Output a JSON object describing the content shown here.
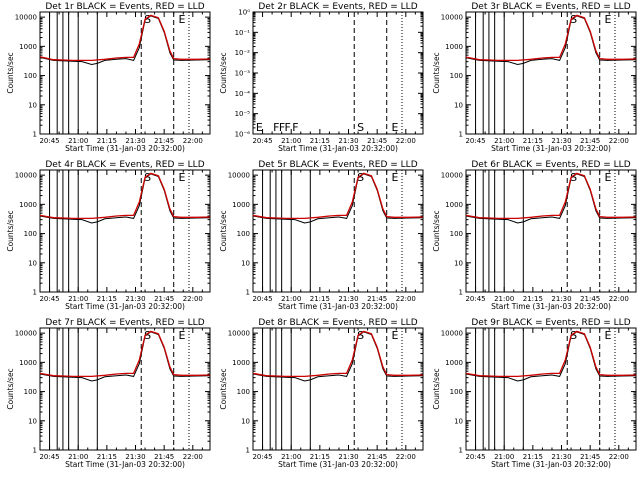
{
  "figure": {
    "xlabel": "Start Time (31-Jan-03 20:32:00)",
    "ylabel": "Counts/sec",
    "x_tick_labels": [
      "20:45",
      "21:00",
      "21:15",
      "21:30",
      "21:45",
      "22:00"
    ],
    "y_tick_labels": [
      "1",
      "10",
      "100",
      "1000",
      "10000"
    ],
    "y_tick_labels_empty": [
      "10⁰",
      "10⁻¹",
      "10⁻²",
      "10⁻³",
      "10⁻⁴",
      "10⁻⁵",
      "10⁻⁶"
    ],
    "event_marker_labels": [
      "F",
      "F",
      "F",
      "F",
      "S",
      "E"
    ],
    "series_colors": {
      "events": "#000000",
      "lld": "#cc0000"
    }
  },
  "chart_data": [
    {
      "type": "line",
      "title": "Det 1r BLACK = Events, RED = LLD",
      "xlim_min": [
        8,
        97
      ],
      "yscale": "log",
      "ylim": [
        1,
        15000
      ],
      "x_tick_minutes": [
        13,
        28,
        43,
        58,
        73,
        88
      ],
      "vlines_solid_min": [
        13,
        17,
        20,
        23,
        28,
        38
      ],
      "vlines_dashed_min": [
        61,
        78
      ],
      "vlines_dotted_min": [
        86
      ],
      "event_markers": [
        {
          "label": "S",
          "min": 62
        },
        {
          "label": "E",
          "min": 80
        }
      ],
      "series": [
        {
          "name": "Events",
          "color": "#000000",
          "x": [
            8,
            15,
            25,
            30,
            35,
            38,
            42,
            48,
            53,
            57,
            60,
            63,
            66,
            70,
            73,
            76,
            78,
            82,
            90,
            97
          ],
          "y": [
            420,
            330,
            310,
            300,
            240,
            260,
            330,
            360,
            380,
            330,
            900,
            8000,
            11000,
            9000,
            3000,
            600,
            340,
            330,
            340,
            350
          ]
        },
        {
          "name": "LLD",
          "color": "#cc0000",
          "x": [
            8,
            15,
            25,
            35,
            42,
            48,
            53,
            57,
            60,
            63,
            66,
            70,
            73,
            76,
            78,
            82,
            90,
            97
          ],
          "y": [
            440,
            350,
            330,
            330,
            360,
            400,
            420,
            420,
            1200,
            8500,
            11500,
            9500,
            3300,
            700,
            380,
            360,
            360,
            370
          ]
        }
      ]
    },
    {
      "type": "line",
      "title": "Det 2r BLACK = Events, RED = LLD",
      "xlim_min": [
        8,
        97
      ],
      "yscale": "log",
      "ylim": [
        1e-06,
        1
      ],
      "x_tick_minutes": [
        13,
        28,
        43,
        58,
        73,
        88
      ],
      "vlines_solid_min": [],
      "vlines_dashed_min": [
        61,
        78
      ],
      "vlines_dotted_min": [
        86
      ],
      "event_markers": [
        {
          "label": "E",
          "min": 9
        },
        {
          "label": "F",
          "min": 18
        },
        {
          "label": "F",
          "min": 21
        },
        {
          "label": "F",
          "min": 24
        },
        {
          "label": "F",
          "min": 28
        },
        {
          "label": "S",
          "min": 62
        },
        {
          "label": "E",
          "min": 80
        }
      ],
      "series": []
    },
    {
      "type": "line",
      "title": "Det 3r BLACK = Events, RED = LLD",
      "xlim_min": [
        8,
        97
      ],
      "yscale": "log",
      "ylim": [
        1,
        15000
      ],
      "x_tick_minutes": [
        13,
        28,
        43,
        58,
        73,
        88
      ],
      "vlines_solid_min": [
        13,
        17,
        20,
        23,
        28,
        38
      ],
      "vlines_dashed_min": [
        61,
        78
      ],
      "vlines_dotted_min": [
        86
      ],
      "event_markers": [
        {
          "label": "S",
          "min": 62
        },
        {
          "label": "E",
          "min": 80
        }
      ],
      "series": [
        {
          "name": "Events",
          "color": "#000000",
          "x": [
            8,
            15,
            25,
            30,
            35,
            38,
            42,
            48,
            53,
            57,
            60,
            63,
            66,
            70,
            73,
            76,
            78,
            82,
            90,
            97
          ],
          "y": [
            410,
            330,
            310,
            300,
            240,
            260,
            330,
            360,
            380,
            330,
            900,
            8000,
            11000,
            9000,
            3000,
            600,
            340,
            330,
            340,
            350
          ]
        },
        {
          "name": "LLD",
          "color": "#cc0000",
          "x": [
            8,
            15,
            25,
            35,
            42,
            48,
            53,
            57,
            60,
            63,
            66,
            70,
            73,
            76,
            78,
            82,
            90,
            97
          ],
          "y": [
            430,
            350,
            330,
            330,
            360,
            400,
            420,
            420,
            1200,
            8500,
            11500,
            9500,
            3300,
            700,
            380,
            360,
            360,
            370
          ]
        }
      ]
    },
    {
      "type": "line",
      "title": "Det 4r BLACK = Events, RED = LLD",
      "xlim_min": [
        8,
        97
      ],
      "yscale": "log",
      "ylim": [
        1,
        15000
      ],
      "x_tick_minutes": [
        13,
        28,
        43,
        58,
        73,
        88
      ],
      "vlines_solid_min": [
        13,
        17,
        20,
        23,
        28,
        38
      ],
      "vlines_dashed_min": [
        61,
        78
      ],
      "vlines_dotted_min": [
        86
      ],
      "event_markers": [
        {
          "label": "S",
          "min": 62
        },
        {
          "label": "E",
          "min": 80
        }
      ],
      "series": [
        {
          "name": "Events",
          "color": "#000000",
          "x": [
            8,
            15,
            25,
            30,
            35,
            38,
            42,
            48,
            53,
            57,
            60,
            63,
            66,
            70,
            73,
            76,
            78,
            82,
            90,
            97
          ],
          "y": [
            400,
            330,
            310,
            300,
            230,
            250,
            320,
            350,
            370,
            330,
            900,
            8000,
            11000,
            9000,
            3000,
            600,
            340,
            330,
            340,
            350
          ]
        },
        {
          "name": "LLD",
          "color": "#cc0000",
          "x": [
            8,
            15,
            25,
            35,
            42,
            48,
            53,
            57,
            60,
            63,
            66,
            70,
            73,
            76,
            78,
            82,
            90,
            97
          ],
          "y": [
            420,
            350,
            330,
            330,
            360,
            400,
            420,
            420,
            1200,
            8500,
            11500,
            9500,
            3300,
            700,
            380,
            360,
            360,
            370
          ]
        }
      ]
    },
    {
      "type": "line",
      "title": "Det 5r BLACK = Events, RED = LLD",
      "xlim_min": [
        8,
        97
      ],
      "yscale": "log",
      "ylim": [
        1,
        15000
      ],
      "x_tick_minutes": [
        13,
        28,
        43,
        58,
        73,
        88
      ],
      "vlines_solid_min": [
        13,
        17,
        20,
        23,
        28,
        38
      ],
      "vlines_dashed_min": [
        61,
        78
      ],
      "vlines_dotted_min": [
        86
      ],
      "event_markers": [
        {
          "label": "S",
          "min": 62
        },
        {
          "label": "E",
          "min": 80
        }
      ],
      "series": [
        {
          "name": "Events",
          "color": "#000000",
          "x": [
            8,
            15,
            25,
            30,
            35,
            38,
            42,
            48,
            53,
            57,
            60,
            63,
            66,
            70,
            73,
            76,
            78,
            82,
            90,
            97
          ],
          "y": [
            400,
            330,
            310,
            300,
            230,
            250,
            320,
            350,
            370,
            330,
            900,
            8000,
            11000,
            9000,
            3000,
            600,
            340,
            330,
            340,
            350
          ]
        },
        {
          "name": "LLD",
          "color": "#cc0000",
          "x": [
            8,
            15,
            25,
            35,
            42,
            48,
            53,
            57,
            60,
            63,
            66,
            70,
            73,
            76,
            78,
            82,
            90,
            97
          ],
          "y": [
            420,
            350,
            330,
            330,
            360,
            400,
            420,
            420,
            1200,
            8500,
            11500,
            9500,
            3300,
            700,
            380,
            360,
            360,
            370
          ]
        }
      ]
    },
    {
      "type": "line",
      "title": "Det 6r BLACK = Events, RED = LLD",
      "xlim_min": [
        8,
        97
      ],
      "yscale": "log",
      "ylim": [
        1,
        15000
      ],
      "x_tick_minutes": [
        13,
        28,
        43,
        58,
        73,
        88
      ],
      "vlines_solid_min": [
        13,
        17,
        20,
        23,
        28,
        38
      ],
      "vlines_dashed_min": [
        61,
        78
      ],
      "vlines_dotted_min": [
        86
      ],
      "event_markers": [
        {
          "label": "S",
          "min": 62
        },
        {
          "label": "E",
          "min": 80
        }
      ],
      "series": [
        {
          "name": "Events",
          "color": "#000000",
          "x": [
            8,
            15,
            25,
            30,
            35,
            38,
            42,
            48,
            53,
            57,
            60,
            63,
            66,
            70,
            73,
            76,
            78,
            82,
            90,
            97
          ],
          "y": [
            400,
            330,
            310,
            300,
            230,
            250,
            320,
            350,
            370,
            330,
            900,
            8000,
            11000,
            9000,
            3000,
            600,
            340,
            330,
            340,
            350
          ]
        },
        {
          "name": "LLD",
          "color": "#cc0000",
          "x": [
            8,
            15,
            25,
            35,
            42,
            48,
            53,
            57,
            60,
            63,
            66,
            70,
            73,
            76,
            78,
            82,
            90,
            97
          ],
          "y": [
            420,
            350,
            330,
            330,
            360,
            400,
            420,
            420,
            1200,
            8500,
            11500,
            9500,
            3300,
            700,
            380,
            360,
            360,
            370
          ]
        }
      ]
    },
    {
      "type": "line",
      "title": "Det 7r BLACK = Events, RED = LLD",
      "xlim_min": [
        8,
        97
      ],
      "yscale": "log",
      "ylim": [
        1,
        15000
      ],
      "x_tick_minutes": [
        13,
        28,
        43,
        58,
        73,
        88
      ],
      "vlines_solid_min": [
        13,
        17,
        20,
        23,
        28,
        38
      ],
      "vlines_dashed_min": [
        61,
        78
      ],
      "vlines_dotted_min": [
        86
      ],
      "event_markers": [
        {
          "label": "S",
          "min": 62
        },
        {
          "label": "E",
          "min": 80
        }
      ],
      "series": [
        {
          "name": "Events",
          "color": "#000000",
          "x": [
            8,
            15,
            25,
            30,
            35,
            38,
            42,
            48,
            53,
            57,
            60,
            63,
            66,
            70,
            73,
            76,
            78,
            82,
            90,
            97
          ],
          "y": [
            400,
            330,
            310,
            300,
            230,
            250,
            320,
            350,
            370,
            330,
            900,
            8000,
            11000,
            9000,
            3000,
            600,
            340,
            330,
            340,
            350
          ]
        },
        {
          "name": "LLD",
          "color": "#cc0000",
          "x": [
            8,
            15,
            25,
            35,
            42,
            48,
            53,
            57,
            60,
            63,
            66,
            70,
            73,
            76,
            78,
            82,
            90,
            97
          ],
          "y": [
            420,
            350,
            330,
            330,
            360,
            400,
            420,
            420,
            1200,
            8500,
            11500,
            9500,
            3300,
            700,
            380,
            360,
            360,
            370
          ]
        }
      ]
    },
    {
      "type": "line",
      "title": "Det 8r BLACK = Events, RED = LLD",
      "xlim_min": [
        8,
        97
      ],
      "yscale": "log",
      "ylim": [
        1,
        15000
      ],
      "x_tick_minutes": [
        13,
        28,
        43,
        58,
        73,
        88
      ],
      "vlines_solid_min": [
        13,
        17,
        20,
        23,
        28,
        38
      ],
      "vlines_dashed_min": [
        61,
        78
      ],
      "vlines_dotted_min": [
        86
      ],
      "event_markers": [
        {
          "label": "S",
          "min": 62
        },
        {
          "label": "E",
          "min": 80
        }
      ],
      "series": [
        {
          "name": "Events",
          "color": "#000000",
          "x": [
            8,
            15,
            25,
            30,
            35,
            38,
            42,
            48,
            53,
            57,
            60,
            63,
            66,
            70,
            73,
            76,
            78,
            82,
            90,
            97
          ],
          "y": [
            400,
            330,
            310,
            300,
            230,
            250,
            320,
            350,
            370,
            330,
            900,
            8000,
            11000,
            9000,
            3000,
            600,
            340,
            330,
            340,
            350
          ]
        },
        {
          "name": "LLD",
          "color": "#cc0000",
          "x": [
            8,
            15,
            25,
            35,
            42,
            48,
            53,
            57,
            60,
            63,
            66,
            70,
            73,
            76,
            78,
            82,
            90,
            97
          ],
          "y": [
            420,
            350,
            330,
            330,
            360,
            400,
            420,
            420,
            1200,
            8500,
            11500,
            9500,
            3300,
            700,
            380,
            360,
            360,
            370
          ]
        }
      ]
    },
    {
      "type": "line",
      "title": "Det 9r BLACK = Events, RED = LLD",
      "xlim_min": [
        8,
        97
      ],
      "yscale": "log",
      "ylim": [
        1,
        15000
      ],
      "x_tick_minutes": [
        13,
        28,
        43,
        58,
        73,
        88
      ],
      "vlines_solid_min": [
        13,
        17,
        20,
        23,
        28,
        38
      ],
      "vlines_dashed_min": [
        61,
        78
      ],
      "vlines_dotted_min": [
        86
      ],
      "event_markers": [
        {
          "label": "S",
          "min": 62
        },
        {
          "label": "E",
          "min": 80
        }
      ],
      "series": [
        {
          "name": "Events",
          "color": "#000000",
          "x": [
            8,
            15,
            25,
            30,
            35,
            38,
            42,
            48,
            53,
            57,
            60,
            63,
            66,
            70,
            73,
            76,
            78,
            82,
            90,
            97
          ],
          "y": [
            400,
            330,
            310,
            300,
            230,
            250,
            320,
            350,
            370,
            330,
            900,
            8000,
            11000,
            9000,
            3000,
            600,
            340,
            330,
            340,
            350
          ]
        },
        {
          "name": "LLD",
          "color": "#cc0000",
          "x": [
            8,
            15,
            25,
            35,
            42,
            48,
            53,
            57,
            60,
            63,
            66,
            70,
            73,
            76,
            78,
            82,
            90,
            97
          ],
          "y": [
            420,
            350,
            330,
            330,
            360,
            400,
            420,
            420,
            1200,
            8500,
            11500,
            9500,
            3300,
            700,
            380,
            360,
            360,
            370
          ]
        }
      ]
    }
  ]
}
